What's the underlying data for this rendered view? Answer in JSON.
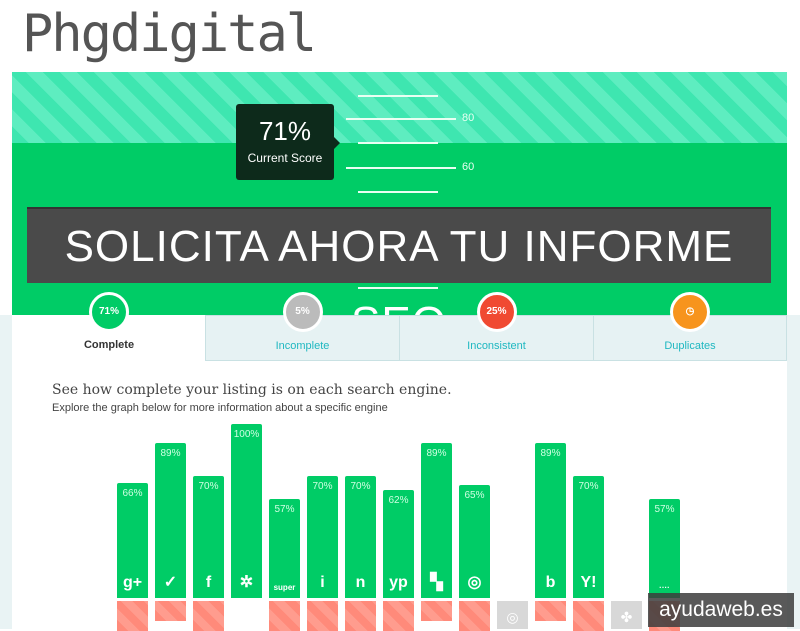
{
  "logo": "Phgdigital",
  "score": {
    "value": "71%",
    "label": "Current Score",
    "ticks": [
      "80",
      "60"
    ]
  },
  "banner": "SOLICITA AHORA TU INFORME SEO",
  "tabs": [
    {
      "label": "Complete",
      "badge": "71%",
      "color": "#00cc66",
      "active": true
    },
    {
      "label": "Incomplete",
      "badge": "5%",
      "color": "#bbbbbb"
    },
    {
      "label": "Inconsistent",
      "badge": "25%",
      "color": "#f04a32"
    },
    {
      "label": "Duplicates",
      "badge": "◷",
      "color": "#f7941d",
      "icon": "clock-icon"
    }
  ],
  "heading": "See how complete your listing is on each search engine.",
  "subheading": "Explore the graph below for more information about a specific engine",
  "chart_data": {
    "type": "bar",
    "categories": [
      "google-plus",
      "foursquare",
      "facebook",
      "yelp",
      "superpages",
      "infogroup",
      "neustar",
      "yellowpages",
      "citysearch",
      "mapquest",
      "yahoo-local",
      "bing",
      "yahoo",
      "hotfrog",
      "other"
    ],
    "values": [
      66,
      89,
      70,
      100,
      57,
      70,
      70,
      62,
      89,
      65,
      null,
      89,
      70,
      null,
      57
    ],
    "labels": [
      "66%",
      "89%",
      "70%",
      "100%",
      "57%",
      "70%",
      "70%",
      "62%",
      "89%",
      "65%",
      "",
      "89%",
      "70%",
      "",
      "57%"
    ],
    "glyphs": [
      "g+",
      "✓",
      "f",
      "✲",
      "super",
      "i",
      "n",
      "yp",
      "▚",
      "◎",
      "◎",
      "b",
      "Y!",
      "✤",
      "····"
    ],
    "ylim": [
      0,
      100
    ]
  },
  "watermark": "ayudaweb.es"
}
